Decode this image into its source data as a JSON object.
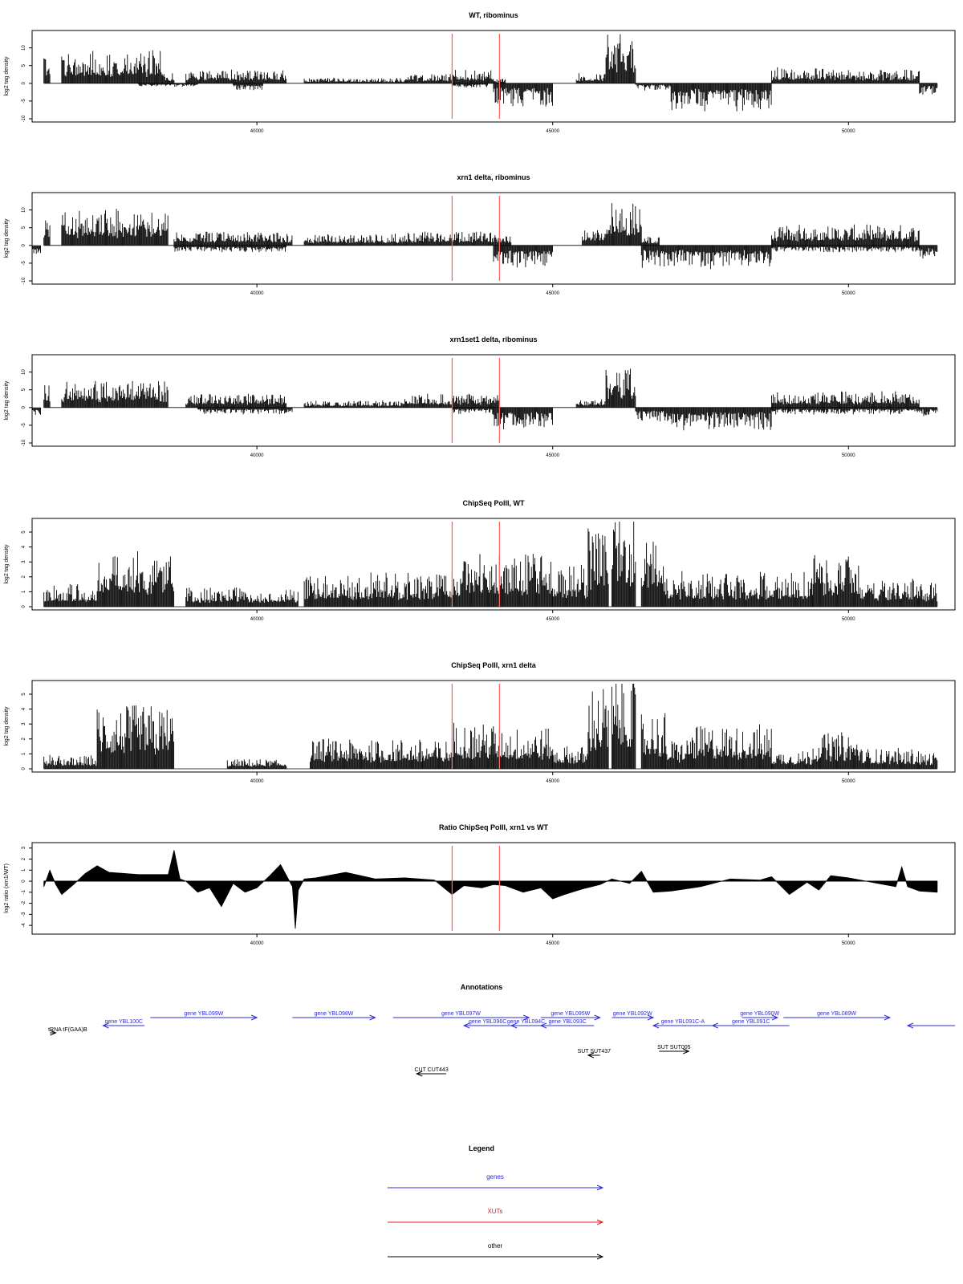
{
  "colors": {
    "signal": "#000000",
    "marker": "#ff6666",
    "gene": "#2b2bd6",
    "xut": "#e02020",
    "other": "#000000",
    "frame": "#000000"
  },
  "chart_data": [
    {
      "type": "bar",
      "title": "WT, ribominus",
      "ylabel": "log2 tag density",
      "xlim": [
        36200,
        51800
      ],
      "ylim": [
        -10,
        14
      ],
      "yticks": [
        -10,
        -5,
        0,
        5,
        10
      ],
      "xticks": [
        40000,
        45000,
        50000
      ],
      "markers": [
        43300,
        44100
      ],
      "pos_segments": [
        [
          36400,
          36500,
          7
        ],
        [
          36700,
          38400,
          7
        ],
        [
          38400,
          38600,
          2.5
        ],
        [
          38800,
          40500,
          3
        ],
        [
          40800,
          42500,
          1.2
        ],
        [
          42500,
          43300,
          2
        ],
        [
          43300,
          44000,
          3
        ],
        [
          44000,
          44200,
          1
        ],
        [
          45400,
          45900,
          2.5
        ],
        [
          45900,
          46400,
          11
        ],
        [
          48700,
          49700,
          3.5
        ],
        [
          49700,
          51200,
          3
        ]
      ],
      "neg_segments": [
        [
          38000,
          39000,
          -0.8
        ],
        [
          39600,
          40100,
          -1.5
        ],
        [
          43300,
          43900,
          -1
        ],
        [
          44000,
          45000,
          -5
        ],
        [
          46400,
          47000,
          -1.5
        ],
        [
          47000,
          48700,
          -6
        ],
        [
          51200,
          51500,
          -2.5
        ]
      ]
    },
    {
      "type": "bar",
      "title": "xrn1 delta, ribominus",
      "ylabel": "log2 tag density",
      "xlim": [
        36200,
        51800
      ],
      "ylim": [
        -10,
        14
      ],
      "yticks": [
        -10,
        -5,
        0,
        5,
        10
      ],
      "xticks": [
        40000,
        45000,
        50000
      ],
      "markers": [
        43300,
        44100
      ],
      "pos_segments": [
        [
          36400,
          36500,
          6
        ],
        [
          36700,
          38500,
          8
        ],
        [
          38600,
          40600,
          3
        ],
        [
          40800,
          42500,
          2.5
        ],
        [
          42500,
          44300,
          3
        ],
        [
          45500,
          45900,
          4
        ],
        [
          45900,
          46500,
          10
        ],
        [
          46500,
          46800,
          2
        ],
        [
          48700,
          51200,
          4.5
        ]
      ],
      "neg_segments": [
        [
          36200,
          36350,
          -3
        ],
        [
          38600,
          40500,
          -1.5
        ],
        [
          44000,
          45000,
          -5
        ],
        [
          46500,
          48700,
          -5
        ],
        [
          48700,
          51200,
          -1.5
        ],
        [
          51200,
          51500,
          -3
        ]
      ]
    },
    {
      "type": "bar",
      "title": "xrn1set1 delta, ribominus",
      "ylabel": "log2 tag density",
      "xlim": [
        36200,
        51800
      ],
      "ylim": [
        -10,
        14
      ],
      "yticks": [
        -10,
        -5,
        0,
        5,
        10
      ],
      "xticks": [
        40000,
        45000,
        50000
      ],
      "markers": [
        43300,
        44100
      ],
      "pos_segments": [
        [
          36400,
          36500,
          5
        ],
        [
          36700,
          38500,
          6
        ],
        [
          38800,
          40500,
          3
        ],
        [
          40800,
          42500,
          1.5
        ],
        [
          42500,
          44100,
          3
        ],
        [
          45400,
          45900,
          2
        ],
        [
          45900,
          46400,
          8.5
        ],
        [
          48700,
          51200,
          3.5
        ]
      ],
      "neg_segments": [
        [
          36200,
          36350,
          -2
        ],
        [
          39000,
          40600,
          -1.5
        ],
        [
          43300,
          44000,
          -1.5
        ],
        [
          44000,
          45000,
          -5
        ],
        [
          46400,
          47000,
          -3
        ],
        [
          47000,
          48700,
          -5
        ],
        [
          48700,
          51200,
          -1.5
        ],
        [
          51200,
          51500,
          -2
        ]
      ]
    },
    {
      "type": "bar",
      "title": "ChipSeq PolII, WT",
      "ylabel": "log2 tag density",
      "xlim": [
        36200,
        51800
      ],
      "ylim": [
        0,
        5.7
      ],
      "yticks": [
        0,
        1,
        2,
        3,
        4,
        5
      ],
      "xticks": [
        40000,
        45000,
        50000
      ],
      "markers": [
        43300,
        44100
      ],
      "pos_segments": [
        [
          36400,
          37300,
          1.2
        ],
        [
          37300,
          38600,
          3
        ],
        [
          38800,
          40700,
          1
        ],
        [
          40800,
          41700,
          1.6
        ],
        [
          41700,
          43300,
          1.8
        ],
        [
          43300,
          44000,
          2.8
        ],
        [
          44000,
          45000,
          2.7
        ],
        [
          45000,
          45600,
          2.2
        ],
        [
          45600,
          45950,
          4.3
        ],
        [
          46000,
          46400,
          5
        ],
        [
          46500,
          46900,
          3.7
        ],
        [
          46900,
          49400,
          1.8
        ],
        [
          49400,
          50200,
          2.7
        ],
        [
          50200,
          51200,
          1.5
        ],
        [
          51200,
          51500,
          1.3
        ]
      ],
      "neg_segments": []
    },
    {
      "type": "bar",
      "title": "ChipSeq PolII, xrn1 delta",
      "ylabel": "log2 tag density",
      "xlim": [
        36200,
        51800
      ],
      "ylim": [
        0,
        5.7
      ],
      "yticks": [
        0,
        1,
        2,
        3,
        4,
        5
      ],
      "xticks": [
        40000,
        45000,
        50000
      ],
      "markers": [
        43300,
        44100
      ],
      "pos_segments": [
        [
          36400,
          37300,
          0.7
        ],
        [
          37300,
          38600,
          3.4
        ],
        [
          39500,
          40500,
          0.5
        ],
        [
          40900,
          42800,
          1.6
        ],
        [
          42800,
          43300,
          1.5
        ],
        [
          43300,
          44000,
          2.5
        ],
        [
          44000,
          45000,
          2.2
        ],
        [
          45000,
          45600,
          1.2
        ],
        [
          45600,
          45950,
          4.4
        ],
        [
          46000,
          46400,
          5
        ],
        [
          46500,
          46900,
          3
        ],
        [
          46900,
          47300,
          1.6
        ],
        [
          47300,
          48700,
          2.3
        ],
        [
          48700,
          49400,
          1
        ],
        [
          49400,
          50200,
          1.9
        ],
        [
          50200,
          51200,
          1.1
        ],
        [
          51200,
          51500,
          0.9
        ]
      ],
      "neg_segments": []
    },
    {
      "type": "area",
      "title": "Ratio ChipSeq PolII, xrn1 vs WT",
      "ylabel": "log2 ratio (xrn1/WT)",
      "xlim": [
        36200,
        51800
      ],
      "ylim": [
        -4.5,
        3.2
      ],
      "yticks": [
        -4,
        -3,
        -2,
        -1,
        0,
        1,
        2,
        3
      ],
      "xticks": [
        40000,
        45000,
        50000
      ],
      "markers": [
        43300,
        44100
      ],
      "x": [
        36400,
        36500,
        36600,
        36700,
        36900,
        37100,
        37300,
        37500,
        38000,
        38500,
        38600,
        38700,
        38800,
        39000,
        39200,
        39400,
        39600,
        39800,
        40000,
        40200,
        40400,
        40600,
        40650,
        40700,
        40800,
        41000,
        41500,
        42000,
        42500,
        43000,
        43300,
        43500,
        43800,
        44000,
        44200,
        44500,
        44800,
        45000,
        45200,
        45500,
        45800,
        46000,
        46300,
        46500,
        46700,
        47000,
        47500,
        48000,
        48500,
        48700,
        49000,
        49300,
        49500,
        49700,
        50000,
        50500,
        50800,
        50900,
        51000,
        51200,
        51500
      ],
      "values": [
        -0.5,
        1,
        -0.3,
        -1.2,
        -0.3,
        0.7,
        1.4,
        0.8,
        0.6,
        0.6,
        2.8,
        0.2,
        0,
        -1,
        -0.6,
        -2.3,
        -0.2,
        -1,
        -0.6,
        0.4,
        1.5,
        -0.5,
        -4.3,
        -0.8,
        0.2,
        0.3,
        0.8,
        0.2,
        0.3,
        0.1,
        -1.2,
        -0.4,
        -0.6,
        -0.3,
        -0.4,
        -1,
        -0.6,
        -1.6,
        -1.2,
        -0.7,
        -0.3,
        0.2,
        -0.2,
        0.9,
        -1,
        -0.9,
        -0.5,
        0.2,
        0.1,
        0.4,
        -1.2,
        -0.1,
        -0.8,
        0.5,
        0.3,
        -0.2,
        -0.5,
        1.3,
        -0.5,
        -0.9,
        -1
      ]
    }
  ],
  "annotations": {
    "title": "Annotations",
    "xlim": [
      36200,
      51800
    ],
    "items": [
      {
        "label": "gene YBL099W",
        "x0": 38200,
        "x1": 40000,
        "row": 0,
        "dir": "right",
        "kind": "gene"
      },
      {
        "label": "gene YBL098W",
        "x0": 40600,
        "x1": 42000,
        "row": 0,
        "dir": "right",
        "kind": "gene"
      },
      {
        "label": "gene YBL097W",
        "x0": 42300,
        "x1": 44600,
        "row": 0,
        "dir": "right",
        "kind": "gene"
      },
      {
        "label": "gene YBL095W",
        "x0": 44800,
        "x1": 45800,
        "row": 0,
        "dir": "right",
        "kind": "gene"
      },
      {
        "label": "gene YBL092W",
        "x0": 46000,
        "x1": 46700,
        "row": 0,
        "dir": "right",
        "kind": "gene"
      },
      {
        "label": "gene YBL090W",
        "x0": 48200,
        "x1": 48800,
        "row": 0,
        "dir": "right",
        "kind": "gene"
      },
      {
        "label": "gene YBL089W",
        "x0": 48900,
        "x1": 50700,
        "row": 0,
        "dir": "right",
        "kind": "gene"
      },
      {
        "label": "gene YBL100C",
        "x0": 37400,
        "x1": 38100,
        "row": 1,
        "dir": "left",
        "kind": "gene"
      },
      {
        "label": "gene YBL096C",
        "x0": 43500,
        "x1": 44300,
        "row": 1,
        "dir": "left",
        "kind": "gene"
      },
      {
        "label": "gene YBL094C",
        "x0": 44300,
        "x1": 44800,
        "row": 1,
        "dir": "left",
        "kind": "gene"
      },
      {
        "label": "gene YBL093C",
        "x0": 44800,
        "x1": 45700,
        "row": 1,
        "dir": "left",
        "kind": "gene"
      },
      {
        "label": "gene YBL091C-A",
        "x0": 46700,
        "x1": 47700,
        "row": 1,
        "dir": "left",
        "kind": "gene"
      },
      {
        "label": "gene YBL091C",
        "x0": 47700,
        "x1": 49000,
        "row": 1,
        "dir": "left",
        "kind": "gene"
      },
      {
        "label": "",
        "x0": 51000,
        "x1": 51800,
        "row": 1,
        "dir": "left",
        "kind": "gene"
      },
      {
        "label": "tRNA tF(GAA)B",
        "x0": 36500,
        "x1": 36600,
        "row": 2,
        "dir": "right",
        "kind": "other"
      },
      {
        "label": "SUT SUT005",
        "x0": 46800,
        "x1": 47300,
        "row": 3,
        "dir": "right",
        "kind": "other"
      },
      {
        "label": "SUT SUT437",
        "x0": 45600,
        "x1": 45800,
        "row": 4,
        "dir": "left",
        "kind": "other"
      },
      {
        "label": "CUT CUT443",
        "x0": 42700,
        "x1": 43200,
        "row": 5,
        "dir": "left",
        "kind": "other"
      }
    ]
  },
  "legend": {
    "title": "Legend",
    "items": [
      {
        "label": "genes",
        "kind": "gene"
      },
      {
        "label": "XUTs",
        "kind": "xut"
      },
      {
        "label": "other",
        "kind": "other"
      }
    ]
  }
}
